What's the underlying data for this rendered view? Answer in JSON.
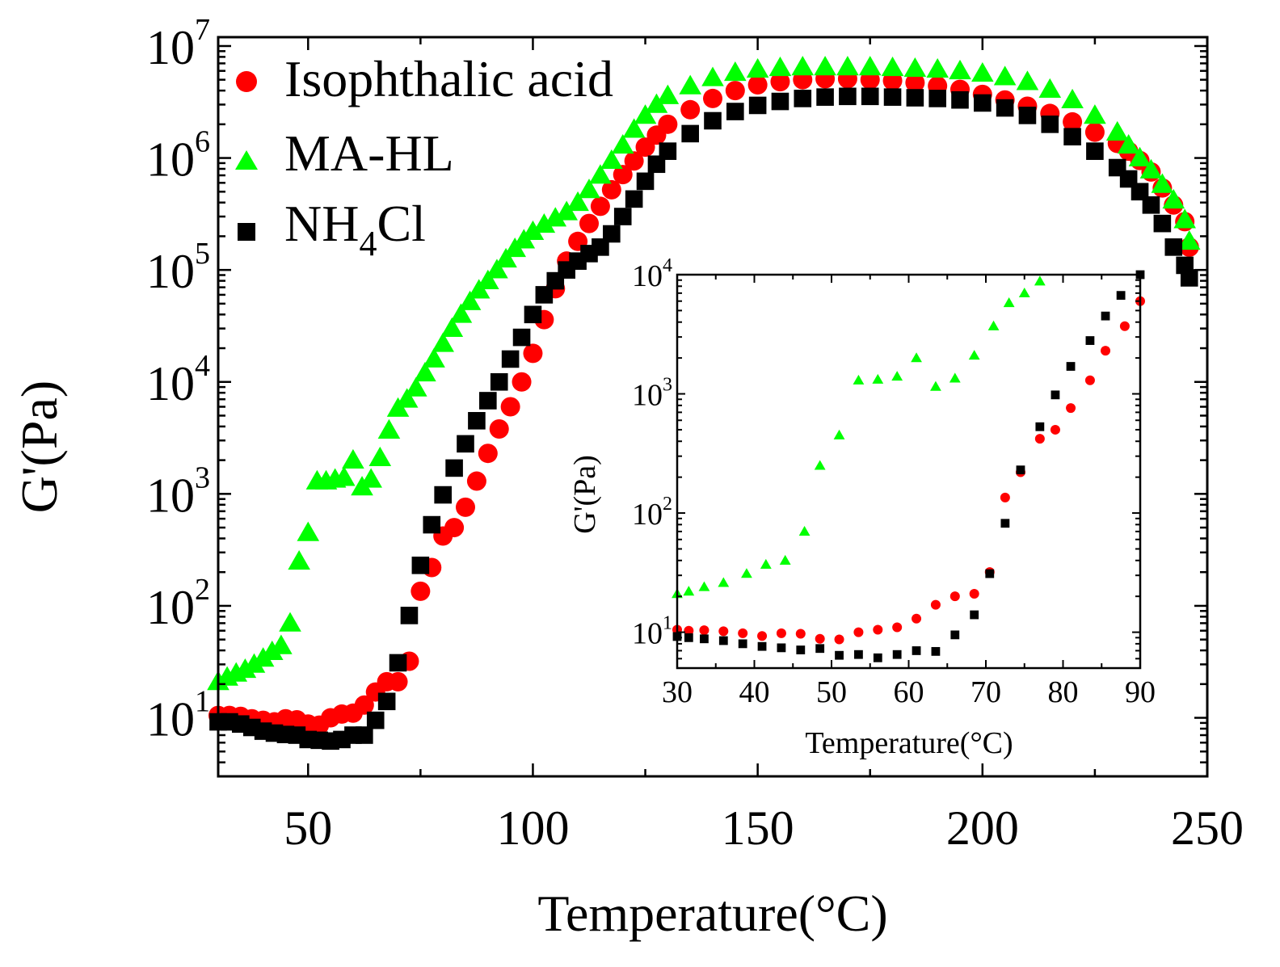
{
  "chart_data": [
    {
      "id": "main",
      "type": "scatter",
      "xlabel": "Temperature(°C)",
      "ylabel": "G'(Pa)",
      "xlim": [
        30,
        250
      ],
      "ylim": [
        3,
        12000000
      ],
      "yscale": "log",
      "x_ticks": [
        50,
        100,
        150,
        200,
        250
      ],
      "x_tick_labels": [
        "50",
        "100",
        "150",
        "200",
        "250"
      ],
      "y_ticks": [
        10,
        100,
        1000,
        10000,
        100000,
        1000000,
        10000000
      ],
      "y_tick_bases": [
        "10",
        "10",
        "10",
        "10",
        "10",
        "10",
        "10"
      ],
      "y_tick_exps": [
        "1",
        "2",
        "3",
        "4",
        "5",
        "6",
        "7"
      ],
      "legend": {
        "position": "top-left",
        "entries": [
          {
            "series": "Isophthalic acid",
            "label": "Isophthalic acid"
          },
          {
            "series": "MA-HL",
            "label": "MA-HL"
          },
          {
            "series": "NH4Cl",
            "label_main": "NH",
            "label_sub": "4",
            "label_tail": "Cl"
          }
        ]
      },
      "series": [
        {
          "name": "Isophthalic acid",
          "color": "#ff0000",
          "marker": "circle",
          "x": [
            30,
            32.5,
            35,
            37.5,
            40,
            42.5,
            45,
            47.5,
            50,
            52.5,
            55,
            57.5,
            60,
            62.5,
            65,
            67.5,
            70,
            72.5,
            75,
            77.5,
            80,
            82.5,
            85,
            87.5,
            90,
            92.5,
            95,
            97.5,
            100,
            102.5,
            105,
            107.5,
            110,
            112.5,
            115,
            117.5,
            120,
            122.5,
            125,
            127.5,
            130,
            135,
            140,
            145,
            150,
            155,
            160,
            165,
            170,
            175,
            180,
            185,
            190,
            195,
            200,
            205,
            210,
            215,
            220,
            225,
            230,
            232.5,
            235,
            237.5,
            240,
            242.5,
            245,
            246
          ],
          "y": [
            10.5,
            10.5,
            10.3,
            9.8,
            9.5,
            9.2,
            9.8,
            9.6,
            8.8,
            8.6,
            10,
            10.8,
            11,
            13,
            17,
            21,
            21,
            32,
            135,
            220,
            420,
            500,
            760,
            1300,
            2300,
            3800,
            6000,
            10000,
            18000,
            36000,
            68000,
            120000,
            180000,
            260000,
            370000,
            520000,
            710000,
            940000,
            1250000,
            1600000,
            2000000,
            2700000,
            3400000,
            4000000,
            4500000,
            4800000,
            5000000,
            5100000,
            5100000,
            5000000,
            4900000,
            4700000,
            4400000,
            4100000,
            3700000,
            3300000,
            2900000,
            2500000,
            2100000,
            1700000,
            1350000,
            1150000,
            950000,
            750000,
            540000,
            380000,
            270000,
            160000
          ]
        },
        {
          "name": "MA-HL",
          "color": "#00ff00",
          "marker": "triangle",
          "x": [
            30,
            32,
            34,
            36,
            38,
            40,
            42,
            44,
            46,
            48,
            50,
            52,
            54,
            56,
            58,
            60,
            62,
            64,
            66,
            68,
            70,
            72,
            74,
            76,
            78,
            80,
            82,
            84,
            86,
            88,
            90,
            92,
            94,
            96,
            98,
            100,
            102.5,
            105,
            107.5,
            110,
            112.5,
            115,
            117.5,
            120,
            122.5,
            125,
            127.5,
            130,
            135,
            140,
            145,
            150,
            155,
            160,
            165,
            170,
            175,
            180,
            185,
            190,
            195,
            200,
            205,
            210,
            215,
            220,
            225,
            230,
            232.5,
            235,
            237.5,
            240,
            242.5,
            245,
            246
          ],
          "y": [
            21,
            23,
            25,
            27,
            30,
            34,
            39,
            44,
            70,
            250,
            450,
            1300,
            1300,
            1350,
            1400,
            2000,
            1150,
            1350,
            2100,
            3700,
            5800,
            7000,
            8800,
            12000,
            16000,
            22000,
            30000,
            40000,
            52000,
            66000,
            80000,
            100000,
            125000,
            155000,
            185000,
            220000,
            255000,
            290000,
            330000,
            400000,
            520000,
            700000,
            950000,
            1300000,
            1800000,
            2400000,
            3000000,
            3600000,
            4400000,
            5200000,
            5800000,
            6200000,
            6400000,
            6500000,
            6500000,
            6500000,
            6500000,
            6400000,
            6300000,
            6200000,
            6000000,
            5700000,
            5300000,
            4800000,
            4100000,
            3300000,
            2400000,
            1700000,
            1300000,
            1000000,
            780000,
            580000,
            420000,
            280000,
            180000
          ]
        },
        {
          "name": "NH4Cl",
          "color": "#000000",
          "marker": "square",
          "x": [
            30,
            32.5,
            35,
            37.5,
            40,
            42.5,
            45,
            47.5,
            50,
            52.5,
            55,
            57.5,
            60,
            62.5,
            65,
            67.5,
            70,
            72.5,
            75,
            77.5,
            80,
            82.5,
            85,
            87.5,
            90,
            92.5,
            95,
            97.5,
            100,
            102.5,
            105,
            107.5,
            110,
            112.5,
            115,
            117.5,
            120,
            122.5,
            125,
            127.5,
            130,
            135,
            140,
            145,
            150,
            155,
            160,
            165,
            170,
            175,
            180,
            185,
            190,
            195,
            200,
            205,
            210,
            215,
            220,
            225,
            230,
            232.5,
            235,
            237.5,
            240,
            242.5,
            245,
            246
          ],
          "y": [
            9.2,
            9.2,
            8.8,
            8.2,
            7.6,
            7.3,
            7.1,
            7,
            6.4,
            6.3,
            6.2,
            6.4,
            7,
            7,
            9.5,
            14,
            31,
            82,
            230,
            530,
            980,
            1700,
            2800,
            4500,
            6800,
            10000,
            16000,
            25000,
            40000,
            60000,
            80000,
            100000,
            120000,
            140000,
            160000,
            210000,
            300000,
            430000,
            620000,
            880000,
            1150000,
            1650000,
            2150000,
            2600000,
            2950000,
            3200000,
            3400000,
            3500000,
            3550000,
            3550000,
            3500000,
            3450000,
            3400000,
            3300000,
            3100000,
            2800000,
            2400000,
            2000000,
            1550000,
            1150000,
            820000,
            650000,
            500000,
            380000,
            260000,
            160000,
            110000,
            85000
          ]
        }
      ]
    },
    {
      "id": "inset",
      "type": "scatter",
      "xlabel": "Temperature(°C)",
      "ylabel": "G'(Pa)",
      "xlim": [
        30,
        90
      ],
      "ylim": [
        5,
        10000
      ],
      "yscale": "log",
      "x_ticks": [
        30,
        40,
        50,
        60,
        70,
        80,
        90
      ],
      "x_tick_labels": [
        "30",
        "40",
        "50",
        "60",
        "70",
        "80",
        "90"
      ],
      "y_ticks": [
        10,
        100,
        1000,
        10000
      ],
      "y_tick_bases": [
        "10",
        "10",
        "10",
        "10"
      ],
      "y_tick_exps": [
        "1",
        "2",
        "3",
        "4"
      ],
      "series": [
        {
          "name": "Isophthalic acid",
          "color": "#ff0000",
          "marker": "circle",
          "x": [
            30,
            31.5,
            33.5,
            36,
            38.5,
            41,
            43.5,
            46,
            48.5,
            51,
            53.5,
            56,
            58.5,
            61,
            63.5,
            66,
            68.5,
            70.5,
            72.5,
            74.5,
            77,
            79,
            81,
            83.5,
            85.5,
            88,
            90
          ],
          "y": [
            10.5,
            10.3,
            10.4,
            10.2,
            9.8,
            9.3,
            9.8,
            9.7,
            8.8,
            8.7,
            10,
            10.5,
            11,
            13,
            17,
            20,
            21,
            32,
            135,
            220,
            420,
            500,
            760,
            1300,
            2300,
            3700,
            6000
          ]
        },
        {
          "name": "MA-HL",
          "color": "#00ff00",
          "marker": "triangle",
          "x": [
            30,
            31.5,
            33.5,
            36,
            39,
            41.5,
            44,
            46.5,
            48.5,
            51,
            53.5,
            56,
            58.5,
            61,
            63.5,
            66,
            68.5,
            71,
            73,
            75,
            77
          ],
          "y": [
            21,
            22,
            24,
            26,
            31,
            37,
            40,
            70,
            250,
            450,
            1300,
            1320,
            1400,
            2000,
            1150,
            1350,
            2100,
            3700,
            5800,
            7000,
            8800
          ]
        },
        {
          "name": "NH4Cl",
          "color": "#000000",
          "marker": "square",
          "x": [
            30,
            31.5,
            33.5,
            36,
            38.5,
            41,
            43.5,
            46,
            48.5,
            51,
            53.5,
            56,
            58.5,
            61,
            63.5,
            66,
            68.5,
            70.5,
            72.5,
            74.5,
            77,
            79,
            81,
            83.5,
            85.5,
            87.5,
            90
          ],
          "y": [
            9.2,
            9,
            8.8,
            8.5,
            8,
            7.6,
            7.4,
            7.1,
            7.3,
            6.4,
            6.5,
            6.1,
            6.5,
            7,
            6.9,
            9.5,
            14,
            31,
            82,
            230,
            530,
            980,
            1700,
            2800,
            4500,
            6700,
            10000
          ]
        }
      ]
    }
  ]
}
